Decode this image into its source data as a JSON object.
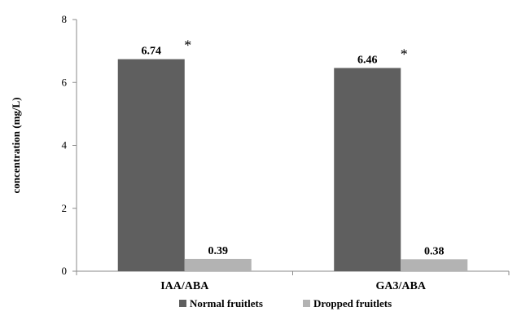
{
  "chart_data": {
    "type": "bar",
    "title": "",
    "xlabel": "",
    "ylabel": "concentration (mg/L)",
    "ylim": [
      0,
      8
    ],
    "yticks": [
      "0",
      "2",
      "4",
      "6",
      "8"
    ],
    "ytick_values": [
      0,
      2,
      4,
      6,
      8
    ],
    "categories": [
      "IAA/ABA",
      "GA3/ABA"
    ],
    "series": [
      {
        "name": "Normal fruitlets",
        "values": [
          6.74,
          6.46
        ],
        "labels": [
          "6.74",
          "6.46"
        ],
        "color": "#5f5f5f"
      },
      {
        "name": "Dropped fruitlets",
        "values": [
          0.39,
          0.38
        ],
        "labels": [
          "0.39",
          "0.38"
        ],
        "color": "#b3b3b3"
      }
    ],
    "significance_markers": [
      "*",
      "*"
    ],
    "grid": false,
    "legend_position": "bottom"
  }
}
